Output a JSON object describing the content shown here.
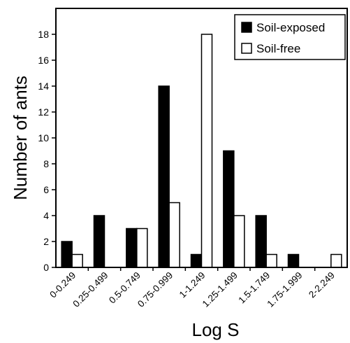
{
  "chart_data": {
    "type": "bar",
    "xlabel": "Log S",
    "ylabel": "Number of ants",
    "ylim": [
      0,
      20
    ],
    "yticks": [
      0,
      2,
      4,
      6,
      8,
      10,
      12,
      14,
      16,
      18
    ],
    "grid": false,
    "legend_position": "top-right",
    "categories": [
      "0-0.249",
      "0.25-0.499",
      "0.5-0.749",
      "0.75-0.999",
      "1-1.249",
      "1.25-1.499",
      "1.5-1.749",
      "1.75-1.999",
      "2-2.249"
    ],
    "series": [
      {
        "name": "Soil-exposed",
        "color": "#000000",
        "values": [
          2,
          4,
          3,
          14,
          1,
          9,
          4,
          1,
          0
        ]
      },
      {
        "name": "Soil-free",
        "color": "#ffffff",
        "values": [
          1,
          0,
          3,
          5,
          18,
          4,
          1,
          0,
          1
        ]
      }
    ]
  }
}
